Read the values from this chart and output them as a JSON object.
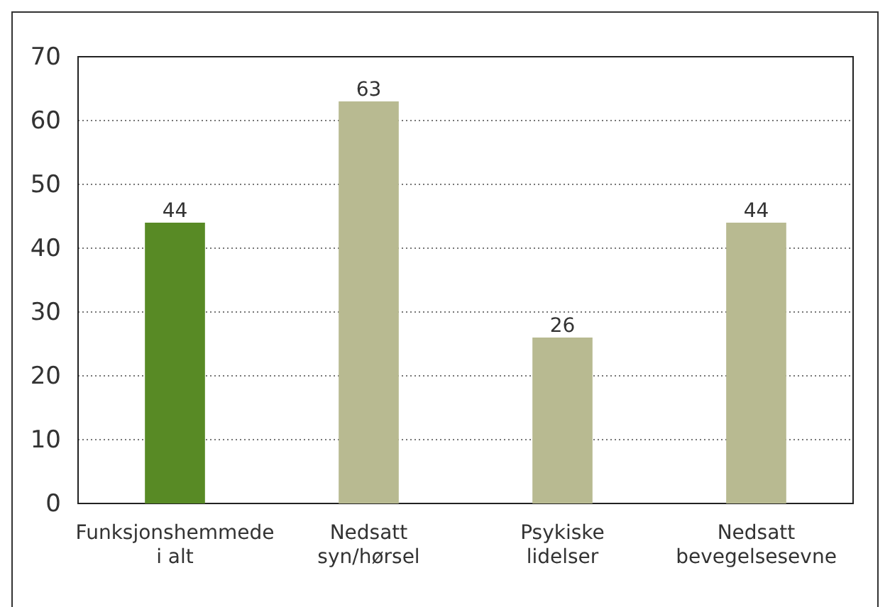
{
  "chart_data": {
    "type": "bar",
    "categories": [
      "Funksjonshemmede\ni alt",
      "Nedsatt\nsyn/hørsel",
      "Psykiske\nlidelser",
      "Nedsatt\nbevegelsesevne"
    ],
    "values": [
      44,
      63,
      26,
      44
    ],
    "colors": [
      "#588a25",
      "#b8ba91",
      "#b8ba91",
      "#b8ba91"
    ],
    "ylim": [
      0,
      70
    ],
    "yticks": [
      0,
      10,
      20,
      30,
      40,
      50,
      60,
      70
    ],
    "grid": "y",
    "data_labels": true
  }
}
